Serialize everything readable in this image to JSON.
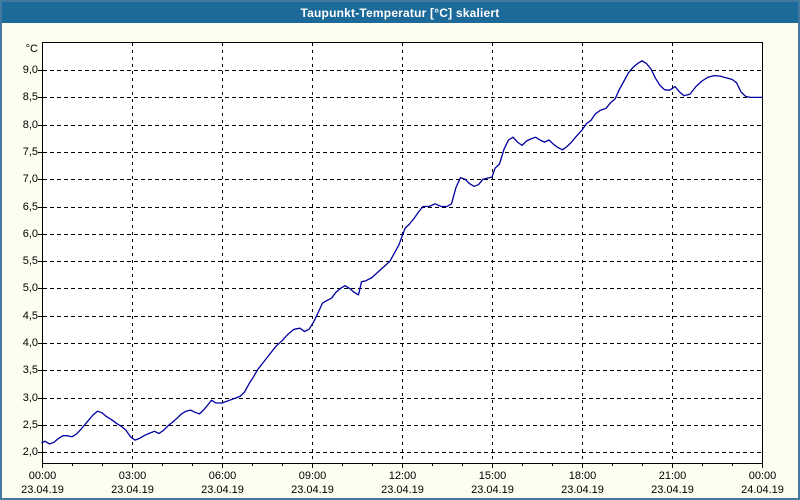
{
  "window": {
    "title": "Taupunkt-Temperatur [°C] skaliert"
  },
  "colors": {
    "title_bar": "#1C6A99",
    "window_border": "#44799F",
    "window_bg": "#FDFDF0",
    "plot_bg": "#FFFFFF",
    "plot_border": "#000000",
    "grid": "#000000",
    "line": "#0000A0",
    "text": "#000000",
    "title_text": "#FFFFFF"
  },
  "chart_data": {
    "type": "line",
    "title": "Taupunkt-Temperatur [°C] skaliert",
    "y_unit": "°C",
    "ylabel": "",
    "xlabel": "",
    "grid": "dashed",
    "legend": "none",
    "ylim": [
      1.8,
      9.515
    ],
    "xlim_hours": [
      0,
      24
    ],
    "y_ticks": [
      {
        "v": 2.0,
        "label": "2,0"
      },
      {
        "v": 2.5,
        "label": "2,5"
      },
      {
        "v": 3.0,
        "label": "3,0"
      },
      {
        "v": 3.5,
        "label": "3,5"
      },
      {
        "v": 4.0,
        "label": "4,0"
      },
      {
        "v": 4.5,
        "label": "4,5"
      },
      {
        "v": 5.0,
        "label": "5,0"
      },
      {
        "v": 5.5,
        "label": "5,5"
      },
      {
        "v": 6.0,
        "label": "6,0"
      },
      {
        "v": 6.5,
        "label": "6,5"
      },
      {
        "v": 7.0,
        "label": "7,0"
      },
      {
        "v": 7.5,
        "label": "7,5"
      },
      {
        "v": 8.0,
        "label": "8,0"
      },
      {
        "v": 8.5,
        "label": "8,5"
      },
      {
        "v": 9.0,
        "label": "9,0"
      }
    ],
    "x_major_ticks": [
      {
        "h": 0,
        "time": "00:00",
        "date": "23.04.19"
      },
      {
        "h": 3,
        "time": "03:00",
        "date": "23.04.19"
      },
      {
        "h": 6,
        "time": "06:00",
        "date": "23.04.19"
      },
      {
        "h": 9,
        "time": "09:00",
        "date": "23.04.19"
      },
      {
        "h": 12,
        "time": "12:00",
        "date": "23.04.19"
      },
      {
        "h": 15,
        "time": "15:00",
        "date": "23.04.19"
      },
      {
        "h": 18,
        "time": "18:00",
        "date": "23.04.19"
      },
      {
        "h": 21,
        "time": "21:00",
        "date": "23.04.19"
      },
      {
        "h": 24,
        "time": "00:00",
        "date": "24.04.19"
      }
    ],
    "x_minor_every_hours": 1,
    "series": [
      {
        "name": "Taupunkt-Temperatur",
        "color": "#0000A0",
        "points": [
          [
            0.0,
            2.17
          ],
          [
            0.1,
            2.2
          ],
          [
            0.25,
            2.15
          ],
          [
            0.4,
            2.18
          ],
          [
            0.55,
            2.25
          ],
          [
            0.7,
            2.3
          ],
          [
            0.85,
            2.3
          ],
          [
            1.0,
            2.28
          ],
          [
            1.15,
            2.33
          ],
          [
            1.3,
            2.42
          ],
          [
            1.5,
            2.55
          ],
          [
            1.7,
            2.68
          ],
          [
            1.85,
            2.75
          ],
          [
            2.0,
            2.72
          ],
          [
            2.15,
            2.65
          ],
          [
            2.3,
            2.6
          ],
          [
            2.5,
            2.52
          ],
          [
            2.65,
            2.47
          ],
          [
            2.8,
            2.4
          ],
          [
            2.95,
            2.28
          ],
          [
            3.1,
            2.22
          ],
          [
            3.25,
            2.25
          ],
          [
            3.4,
            2.3
          ],
          [
            3.6,
            2.35
          ],
          [
            3.75,
            2.38
          ],
          [
            3.9,
            2.34
          ],
          [
            4.05,
            2.4
          ],
          [
            4.2,
            2.48
          ],
          [
            4.35,
            2.55
          ],
          [
            4.5,
            2.62
          ],
          [
            4.65,
            2.7
          ],
          [
            4.8,
            2.75
          ],
          [
            4.95,
            2.77
          ],
          [
            5.1,
            2.73
          ],
          [
            5.25,
            2.7
          ],
          [
            5.4,
            2.78
          ],
          [
            5.55,
            2.88
          ],
          [
            5.65,
            2.95
          ],
          [
            5.8,
            2.9
          ],
          [
            6.0,
            2.9
          ],
          [
            6.2,
            2.94
          ],
          [
            6.4,
            2.98
          ],
          [
            6.6,
            3.02
          ],
          [
            6.75,
            3.1
          ],
          [
            6.9,
            3.25
          ],
          [
            7.05,
            3.38
          ],
          [
            7.2,
            3.52
          ],
          [
            7.4,
            3.66
          ],
          [
            7.6,
            3.8
          ],
          [
            7.8,
            3.94
          ],
          [
            8.0,
            4.04
          ],
          [
            8.2,
            4.16
          ],
          [
            8.4,
            4.25
          ],
          [
            8.6,
            4.27
          ],
          [
            8.75,
            4.21
          ],
          [
            8.9,
            4.25
          ],
          [
            9.05,
            4.38
          ],
          [
            9.2,
            4.55
          ],
          [
            9.35,
            4.73
          ],
          [
            9.5,
            4.78
          ],
          [
            9.65,
            4.82
          ],
          [
            9.8,
            4.93
          ],
          [
            9.95,
            5.0
          ],
          [
            10.1,
            5.05
          ],
          [
            10.25,
            5.0
          ],
          [
            10.4,
            4.93
          ],
          [
            10.55,
            4.88
          ],
          [
            10.65,
            5.12
          ],
          [
            10.8,
            5.14
          ],
          [
            11.0,
            5.2
          ],
          [
            11.2,
            5.3
          ],
          [
            11.4,
            5.4
          ],
          [
            11.6,
            5.5
          ],
          [
            11.75,
            5.65
          ],
          [
            11.9,
            5.8
          ],
          [
            12.0,
            5.95
          ],
          [
            12.1,
            6.1
          ],
          [
            12.25,
            6.18
          ],
          [
            12.4,
            6.28
          ],
          [
            12.55,
            6.4
          ],
          [
            12.7,
            6.5
          ],
          [
            12.9,
            6.5
          ],
          [
            13.1,
            6.55
          ],
          [
            13.3,
            6.5
          ],
          [
            13.5,
            6.5
          ],
          [
            13.65,
            6.55
          ],
          [
            13.8,
            6.85
          ],
          [
            13.95,
            7.03
          ],
          [
            14.1,
            7.0
          ],
          [
            14.25,
            6.92
          ],
          [
            14.4,
            6.87
          ],
          [
            14.55,
            6.9
          ],
          [
            14.7,
            7.0
          ],
          [
            14.85,
            7.02
          ],
          [
            15.0,
            7.04
          ],
          [
            15.1,
            7.2
          ],
          [
            15.25,
            7.28
          ],
          [
            15.4,
            7.55
          ],
          [
            15.55,
            7.72
          ],
          [
            15.7,
            7.77
          ],
          [
            15.85,
            7.68
          ],
          [
            16.0,
            7.62
          ],
          [
            16.15,
            7.7
          ],
          [
            16.3,
            7.74
          ],
          [
            16.45,
            7.77
          ],
          [
            16.6,
            7.72
          ],
          [
            16.75,
            7.68
          ],
          [
            16.9,
            7.72
          ],
          [
            17.05,
            7.64
          ],
          [
            17.2,
            7.58
          ],
          [
            17.35,
            7.54
          ],
          [
            17.5,
            7.6
          ],
          [
            17.65,
            7.68
          ],
          [
            17.8,
            7.78
          ],
          [
            18.0,
            7.9
          ],
          [
            18.15,
            8.02
          ],
          [
            18.3,
            8.08
          ],
          [
            18.45,
            8.2
          ],
          [
            18.6,
            8.26
          ],
          [
            18.8,
            8.3
          ],
          [
            18.95,
            8.4
          ],
          [
            19.1,
            8.47
          ],
          [
            19.25,
            8.65
          ],
          [
            19.4,
            8.8
          ],
          [
            19.55,
            8.95
          ],
          [
            19.7,
            9.05
          ],
          [
            19.85,
            9.12
          ],
          [
            20.0,
            9.17
          ],
          [
            20.15,
            9.12
          ],
          [
            20.3,
            9.02
          ],
          [
            20.45,
            8.85
          ],
          [
            20.6,
            8.72
          ],
          [
            20.75,
            8.64
          ],
          [
            20.9,
            8.63
          ],
          [
            21.0,
            8.66
          ],
          [
            21.1,
            8.7
          ],
          [
            21.25,
            8.6
          ],
          [
            21.4,
            8.53
          ],
          [
            21.6,
            8.56
          ],
          [
            21.8,
            8.7
          ],
          [
            22.0,
            8.8
          ],
          [
            22.2,
            8.87
          ],
          [
            22.4,
            8.9
          ],
          [
            22.6,
            8.89
          ],
          [
            22.8,
            8.86
          ],
          [
            23.0,
            8.83
          ],
          [
            23.15,
            8.77
          ],
          [
            23.3,
            8.6
          ],
          [
            23.45,
            8.52
          ],
          [
            23.6,
            8.5
          ],
          [
            23.8,
            8.5
          ],
          [
            24.0,
            8.5
          ]
        ]
      }
    ]
  }
}
